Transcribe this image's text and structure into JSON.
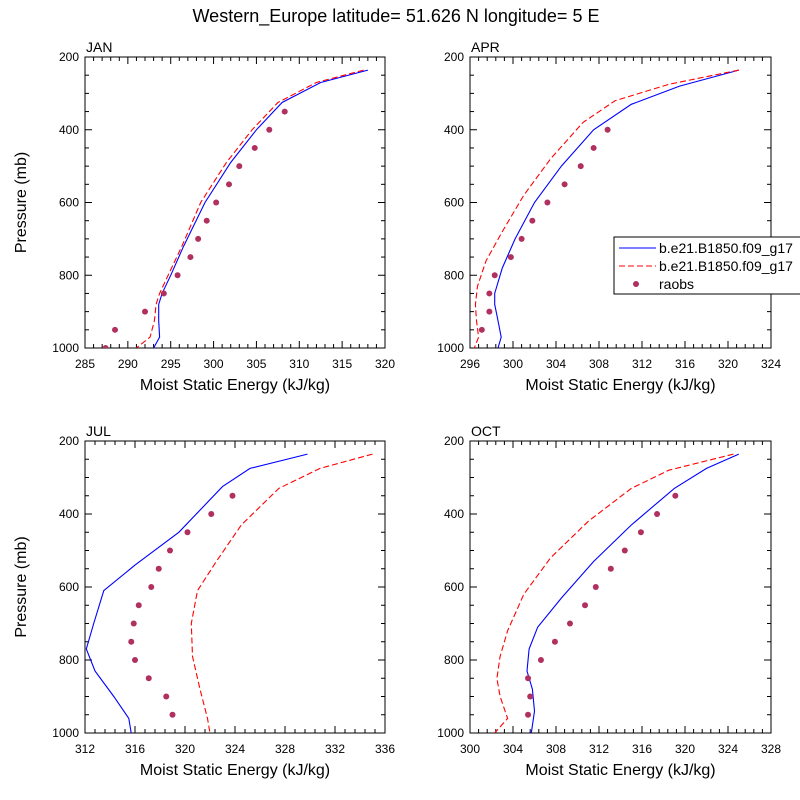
{
  "figure_title": "Western_Europe  latitude= 51.626 N longitude= 5 E",
  "legend": {
    "entries": [
      {
        "label": "b.e21.B1850.f09_g17",
        "color": "#0000ff",
        "style": "solid"
      },
      {
        "label": "b.e21.B1850.f09_g17",
        "color": "#ff0000",
        "style": "dashed"
      },
      {
        "label": "raobs",
        "color": "#b03060",
        "style": "marker"
      }
    ]
  },
  "chart_data": [
    {
      "type": "line",
      "panel_title": "JAN",
      "xlabel": "Moist Static Energy (kJ/kg)",
      "ylabel": "Pressure (mb)",
      "xlim": [
        285,
        320
      ],
      "ylim": [
        1000,
        200
      ],
      "xticks": [
        285,
        290,
        295,
        300,
        305,
        310,
        315,
        320
      ],
      "yticks": [
        200,
        400,
        600,
        800,
        1000
      ],
      "series": [
        {
          "color": "#0000ff",
          "style": "solid",
          "x": [
            318,
            312.5,
            308,
            305,
            302,
            299,
            296.5,
            295,
            294,
            293.6,
            293.6,
            293.7,
            293
          ],
          "y": [
            236,
            270,
            325,
            400,
            490,
            600,
            720,
            800,
            850,
            880,
            925,
            970,
            1000
          ]
        },
        {
          "color": "#ff0000",
          "style": "dashed",
          "x": [
            317.5,
            312,
            307.5,
            304.5,
            301.5,
            298.5,
            296.3,
            294.7,
            293.7,
            293.3,
            293.1,
            292.6,
            291
          ]
        },
        {
          "color": "#b03060",
          "style": "marker",
          "x": [
            308.3,
            306.5,
            304.8,
            303,
            301.8,
            300.3,
            299.2,
            298.2,
            297.3,
            295.8,
            294.2,
            292,
            288.5,
            287.4
          ],
          "y": [
            350,
            400,
            450,
            500,
            550,
            600,
            650,
            700,
            750,
            800,
            850,
            900,
            950,
            1000
          ]
        }
      ]
    },
    {
      "type": "line",
      "panel_title": "APR",
      "xlabel": "Moist Static Energy (kJ/kg)",
      "ylabel": "",
      "xlim": [
        296,
        324
      ],
      "ylim": [
        1000,
        200
      ],
      "xticks": [
        296,
        300,
        304,
        308,
        312,
        316,
        320,
        324
      ],
      "yticks": [
        200,
        400,
        600,
        800,
        1000
      ],
      "series": [
        {
          "color": "#0000ff",
          "style": "solid",
          "x": [
            321,
            315.5,
            311,
            307.5,
            304.5,
            302,
            300.2,
            299,
            298.3,
            298.3,
            298.6,
            298.9,
            298.6
          ],
          "y": [
            236,
            280,
            330,
            400,
            500,
            600,
            700,
            780,
            850,
            880,
            925,
            970,
            1000
          ]
        },
        {
          "color": "#ff0000",
          "style": "dashed",
          "x": [
            321,
            314.5,
            309.5,
            306.5,
            303.5,
            301,
            299,
            297.5,
            296.7,
            296.5,
            296.6,
            296.8,
            296.4
          ],
          "y": [
            236,
            275,
            320,
            380,
            480,
            580,
            680,
            760,
            830,
            880,
            925,
            970,
            1000
          ]
        },
        {
          "color": "#b03060",
          "style": "marker",
          "x": [
            308.8,
            307.5,
            306.3,
            304.8,
            303.2,
            301.8,
            300.8,
            299.8,
            298.3,
            297.8,
            297.8,
            297.1
          ],
          "y": [
            400,
            450,
            500,
            550,
            600,
            650,
            700,
            750,
            800,
            850,
            900,
            950
          ]
        }
      ]
    },
    {
      "type": "line",
      "panel_title": "JUL",
      "xlabel": "Moist Static Energy (kJ/kg)",
      "ylabel": "Pressure (mb)",
      "xlim": [
        312,
        336
      ],
      "ylim": [
        1000,
        200
      ],
      "xticks": [
        312,
        316,
        320,
        324,
        328,
        332,
        336
      ],
      "yticks": [
        200,
        400,
        600,
        800,
        1000
      ],
      "series": [
        {
          "color": "#0000ff",
          "style": "solid",
          "x": [
            329.8,
            325.2,
            323,
            319.5,
            316,
            313.5,
            312.7,
            312.1,
            312.8,
            314.3,
            315.5,
            315.7
          ],
          "y": [
            236,
            275,
            325,
            450,
            540,
            610,
            700,
            770,
            830,
            900,
            960,
            1000
          ]
        },
        {
          "color": "#ff0000",
          "style": "dashed",
          "x": [
            335,
            330.8,
            327.5,
            324.5,
            322.5,
            321,
            320.5,
            320.6,
            321.2,
            321.8,
            322
          ],
          "y": [
            236,
            275,
            330,
            430,
            530,
            610,
            700,
            790,
            880,
            960,
            1000
          ]
        },
        {
          "color": "#b03060",
          "style": "marker",
          "x": [
            323.8,
            322.1,
            320.2,
            318.8,
            317.9,
            317.3,
            316.3,
            315.9,
            315.7,
            316,
            317.1,
            318.5,
            319
          ],
          "y": [
            350,
            400,
            450,
            500,
            550,
            600,
            650,
            700,
            750,
            800,
            850,
            900,
            950
          ]
        }
      ]
    },
    {
      "type": "line",
      "panel_title": "OCT",
      "xlabel": "Moist Static Energy (kJ/kg)",
      "ylabel": "",
      "xlim": [
        300,
        328
      ],
      "ylim": [
        1000,
        200
      ],
      "xticks": [
        300,
        304,
        308,
        312,
        316,
        320,
        324,
        328
      ],
      "yticks": [
        200,
        400,
        600,
        800,
        1000
      ],
      "series": [
        {
          "color": "#0000ff",
          "style": "solid",
          "x": [
            325,
            322,
            319,
            315,
            311.5,
            308.5,
            306.3,
            305.5,
            305.3,
            305.8,
            306,
            305.7
          ],
          "y": [
            236,
            275,
            330,
            430,
            530,
            630,
            710,
            770,
            830,
            880,
            940,
            1000
          ]
        },
        {
          "color": "#ff0000",
          "style": "dashed",
          "x": [
            324.5,
            318.5,
            315,
            311,
            307.5,
            305,
            303.5,
            302.8,
            302.5,
            302.8,
            303.5,
            302.3
          ],
          "y": [
            236,
            280,
            330,
            420,
            520,
            620,
            720,
            790,
            850,
            900,
            960,
            1000
          ]
        },
        {
          "color": "#b03060",
          "style": "marker",
          "x": [
            319.1,
            317.4,
            315.9,
            314.4,
            313.1,
            311.7,
            310.7,
            309.3,
            307.9,
            306.6,
            305.4,
            305.6,
            305.4
          ],
          "y": [
            350,
            400,
            450,
            500,
            550,
            600,
            650,
            700,
            750,
            800,
            850,
            900,
            950
          ]
        }
      ]
    }
  ]
}
